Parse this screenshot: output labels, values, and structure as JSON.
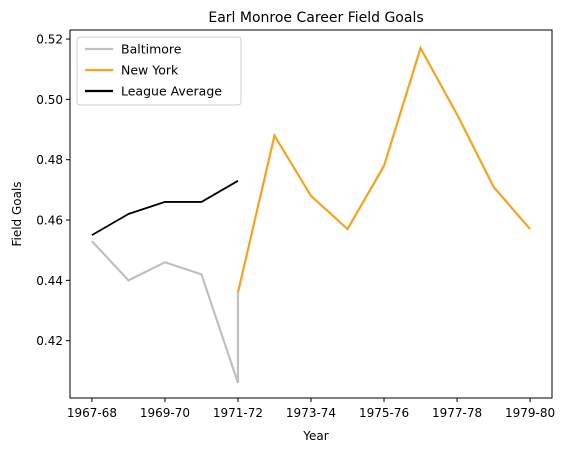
{
  "chart_data": {
    "type": "line",
    "title": "Earl Monroe Career Field Goals",
    "xlabel": "Year",
    "ylabel": "Field Goals",
    "categories": [
      "1967-68",
      "1968-69",
      "1969-70",
      "1970-71",
      "1971-72",
      "1972-73",
      "1973-74",
      "1974-75",
      "1975-76",
      "1976-77",
      "1977-78",
      "1978-79",
      "1979-80"
    ],
    "tick_labels": [
      "1967-68",
      "1969-70",
      "1971-72",
      "1973-74",
      "1975-76",
      "1977-78",
      "1979-80"
    ],
    "ylim": [
      0.401,
      0.523
    ],
    "yticks": [
      0.42,
      0.44,
      0.46,
      0.48,
      0.5,
      0.52
    ],
    "grid": false,
    "legend_position": "top-left",
    "series": [
      {
        "name": "Baltimore",
        "color": "#bfbfbf",
        "points": [
          {
            "x": "1967-68",
            "y": 0.453
          },
          {
            "x": "1968-69",
            "y": 0.44
          },
          {
            "x": "1969-70",
            "y": 0.446
          },
          {
            "x": "1970-71",
            "y": 0.442
          },
          {
            "x": "1971-72",
            "y": 0.406
          },
          {
            "x": "1971-72",
            "y": 0.436
          }
        ]
      },
      {
        "name": "New York",
        "color": "#f5a31f",
        "points": [
          {
            "x": "1971-72",
            "y": 0.436
          },
          {
            "x": "1972-73",
            "y": 0.488
          },
          {
            "x": "1973-74",
            "y": 0.468
          },
          {
            "x": "1974-75",
            "y": 0.457
          },
          {
            "x": "1975-76",
            "y": 0.478
          },
          {
            "x": "1976-77",
            "y": 0.517
          },
          {
            "x": "1977-78",
            "y": 0.495
          },
          {
            "x": "1978-79",
            "y": 0.471
          },
          {
            "x": "1979-80",
            "y": 0.457
          }
        ]
      },
      {
        "name": "League Average",
        "color": "#000000",
        "points": [
          {
            "x": "1967-68",
            "y": 0.455
          },
          {
            "x": "1968-69",
            "y": 0.462
          },
          {
            "x": "1969-70",
            "y": 0.466
          },
          {
            "x": "1970-71",
            "y": 0.466
          },
          {
            "x": "1971-72",
            "y": 0.473
          }
        ]
      }
    ]
  }
}
